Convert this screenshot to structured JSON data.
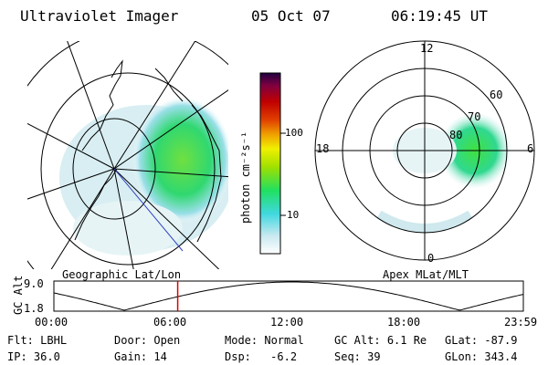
{
  "header": {
    "title": "Ultraviolet Imager",
    "date": "05 Oct 07",
    "time": "06:19:45 UT"
  },
  "left_panel": {
    "label": "Geographic Lat/Lon"
  },
  "right_panel": {
    "label": "Apex MLat/MLT",
    "mlt_labels": {
      "top": "12",
      "left": "18",
      "right": "6",
      "bottom": "0"
    },
    "lat_labels": [
      "60",
      "70",
      "80"
    ]
  },
  "colorbar": {
    "unit": "photon cm⁻²s⁻¹",
    "ticks": [
      "100",
      "10"
    ],
    "colors": [
      "#ffffff",
      "#c8e8f0",
      "#40d8e0",
      "#20e060",
      "#a0e000",
      "#f0f000",
      "#f0a000",
      "#e04000",
      "#c00000",
      "#800040",
      "#200040"
    ]
  },
  "track": {
    "ylabel": "GC Alt",
    "yticks": [
      "9.0",
      "1.8"
    ],
    "xticks": [
      "00:00",
      "06:00",
      "12:00",
      "18:00",
      "23:59"
    ],
    "marker_time_hours": 6.33,
    "marker_color": "#e00000"
  },
  "info": {
    "row1": [
      {
        "label": "Flt:",
        "value": "LBHL"
      },
      {
        "label": "Door:",
        "value": "Open"
      },
      {
        "label": "Mode:",
        "value": "Normal"
      },
      {
        "label": "GC Alt:",
        "value": "6.1 Re"
      },
      {
        "label": "GLat:",
        "value": "-87.9"
      }
    ],
    "row2": [
      {
        "label": "IP:",
        "value": "36.0"
      },
      {
        "label": "Gain:",
        "value": "14"
      },
      {
        "label": "Dsp:",
        "value": "-6.2"
      },
      {
        "label": "Seq:",
        "value": "39"
      },
      {
        "label": "GLon:",
        "value": "343.4"
      }
    ]
  }
}
